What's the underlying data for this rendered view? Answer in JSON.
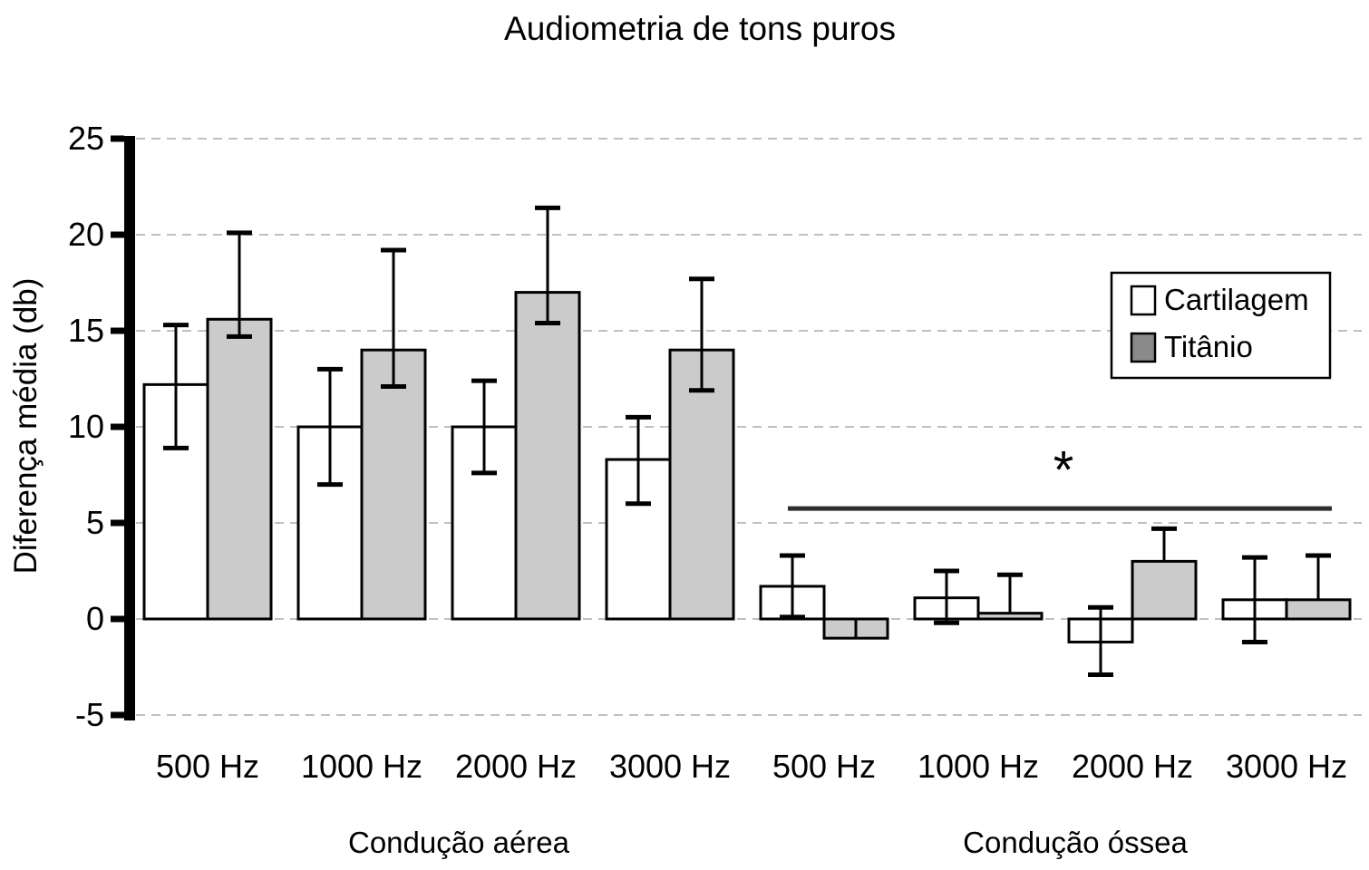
{
  "title": "Audiometria de tons puros",
  "ylabel": "Diferença média (db)",
  "legend": {
    "items": [
      {
        "label": "Cartilagem",
        "swatch": "#ffffff"
      },
      {
        "label": "Titânio",
        "swatch": "#8a8a8a"
      }
    ]
  },
  "significance": {
    "symbol": "*"
  },
  "colors": {
    "cartilagem_fill": "#ffffff",
    "titanio_fill": "#cbcbcb",
    "outline": "#000000",
    "grid": "#c0c0c0",
    "axis": "#000000",
    "significance_line": "#2f2f2f"
  },
  "chart_data": {
    "type": "bar",
    "title": "Audiometria de tons puros",
    "ylabel": "Diferença média (db)",
    "ylim": [
      -5,
      25
    ],
    "yticks": [
      25,
      20,
      15,
      10,
      5,
      0,
      -5
    ],
    "grid": "horizontal-dashed",
    "legend_position": "upper-right",
    "series_names": [
      "Cartilagem",
      "Titânio"
    ],
    "sections": [
      {
        "label": "Condução aérea",
        "categories": [
          "500 Hz",
          "1000 Hz",
          "2000 Hz",
          "3000 Hz"
        ],
        "series": [
          {
            "name": "Cartilagem",
            "values": [
              12.2,
              10.0,
              10.0,
              8.3
            ],
            "err_hi": [
              15.3,
              13.0,
              12.4,
              10.5
            ],
            "err_lo": [
              8.9,
              7.0,
              7.6,
              6.0
            ]
          },
          {
            "name": "Titânio",
            "values": [
              15.6,
              14.0,
              17.0,
              14.0
            ],
            "err_hi": [
              20.1,
              19.2,
              21.4,
              17.7
            ],
            "err_lo": [
              14.7,
              12.1,
              15.4,
              11.9
            ]
          }
        ]
      },
      {
        "label": "Condução óssea",
        "categories": [
          "500 Hz",
          "1000 Hz",
          "2000 Hz",
          "3000 Hz"
        ],
        "series": [
          {
            "name": "Cartilagem",
            "values": [
              1.7,
              1.1,
              -1.2,
              1.0
            ],
            "err_hi": [
              3.3,
              2.5,
              0.6,
              3.2
            ],
            "err_lo": [
              0.1,
              -0.2,
              -2.9,
              -1.2
            ]
          },
          {
            "name": "Titânio",
            "values": [
              -1.0,
              0.3,
              3.0,
              1.0
            ],
            "err_hi": [
              0.0,
              2.3,
              4.7,
              3.3
            ],
            "err_lo": [
              -1.0,
              0.3,
              3.0,
              1.0
            ],
            "caps_hi": [
              false,
              true,
              true,
              true
            ],
            "caps_lo": [
              false,
              false,
              false,
              false
            ]
          }
        ],
        "significance": {
          "symbol": "*",
          "line_value": 5.75,
          "symbol_value": 8.1
        }
      }
    ]
  }
}
